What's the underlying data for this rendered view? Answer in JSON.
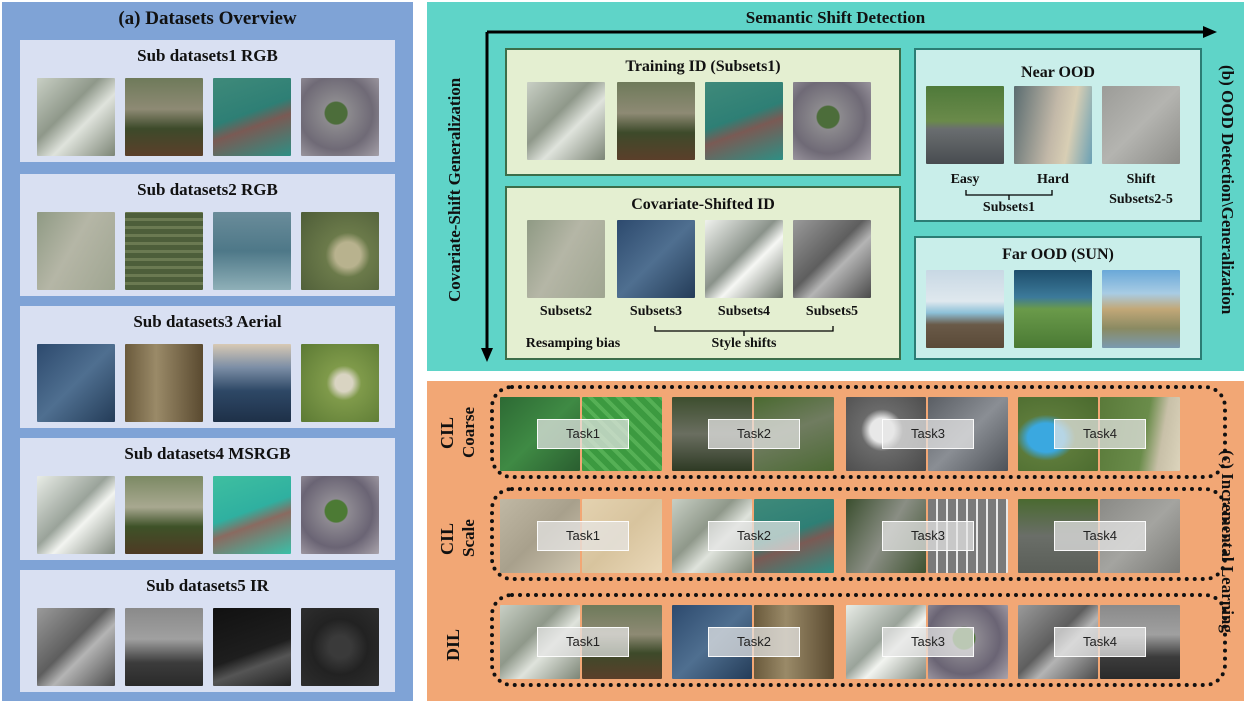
{
  "panel_a": {
    "title": "(a) Datasets Overview",
    "subsets": [
      {
        "title": "Sub datasets1 RGB"
      },
      {
        "title": "Sub datasets2 RGB"
      },
      {
        "title": "Sub datasets3 Aerial"
      },
      {
        "title": "Sub datasets4 MSRGB"
      },
      {
        "title": "Sub datasets5 IR"
      }
    ]
  },
  "panel_b": {
    "title": "(b) OOD Detection\\Generalization",
    "x_axis": "Semantic Shift Detection",
    "y_axis": "Covariate-Shift Generalization",
    "training_id": {
      "title": "Training ID (Subsets1)"
    },
    "covariate_id": {
      "title": "Covariate-Shifted ID",
      "labels": [
        "Subsets2",
        "Subsets3",
        "Subsets4",
        "Subsets5"
      ],
      "resampling": "Resamping bias",
      "style": "Style shifts"
    },
    "near_ood": {
      "title": "Near OOD",
      "easy": "Easy",
      "hard": "Hard",
      "shift": "Shift",
      "subsets1": "Subsets1",
      "subsets25": "Subsets2-5"
    },
    "far_ood": {
      "title": "Far OOD (SUN)"
    }
  },
  "panel_c": {
    "title": "(c) Incremental Learning",
    "rows": [
      {
        "label1": "CIL",
        "label2": "Coarse",
        "tasks": [
          "Task1",
          "Task2",
          "Task3",
          "Task4"
        ]
      },
      {
        "label1": "CIL",
        "label2": "Scale",
        "tasks": [
          "Task1",
          "Task2",
          "Task3",
          "Task4"
        ]
      },
      {
        "label1": "DIL",
        "label2": "",
        "tasks": [
          "Task1",
          "Task2",
          "Task3",
          "Task4"
        ]
      }
    ]
  }
}
